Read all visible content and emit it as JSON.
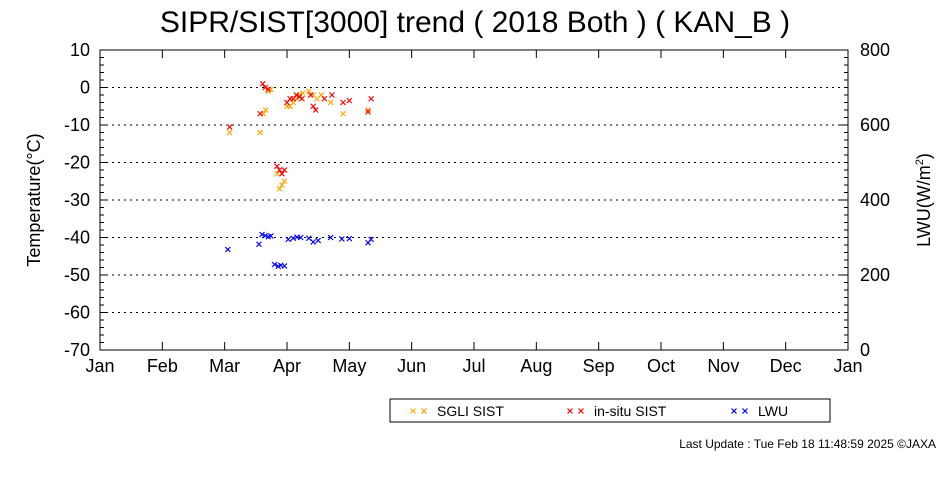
{
  "chart_data": {
    "type": "scatter",
    "title": "SIPR/SIST[3000] trend ( 2018 Both ) ( KAN_B )",
    "ylabel": "Temperature(°C)",
    "ylabel2_main": "LWU(W/m",
    "ylabel2_sup": "2",
    "ylabel2_end": ")",
    "ylim": [
      -70,
      10
    ],
    "y_ticks": [
      10,
      0,
      -10,
      -20,
      -30,
      -40,
      -50,
      -60,
      -70
    ],
    "y2lim": [
      0,
      800
    ],
    "y2_ticks": [
      800,
      600,
      400,
      200,
      0
    ],
    "xlim": [
      1,
      13
    ],
    "x_tick_labels": [
      "Jan",
      "Feb",
      "Mar",
      "Apr",
      "May",
      "Jun",
      "Jul",
      "Aug",
      "Sep",
      "Oct",
      "Nov",
      "Dec",
      "Jan"
    ],
    "grid": "dotted-horizontal",
    "legend_placement": "bottom",
    "series": [
      {
        "name": "SGLI SIST",
        "axis": "left",
        "color": "#ffa500",
        "marker": "x",
        "points": [
          [
            3.08,
            -12
          ],
          [
            3.57,
            -12
          ],
          [
            3.62,
            -7
          ],
          [
            3.66,
            -6
          ],
          [
            3.7,
            -1
          ],
          [
            3.74,
            -0.5
          ],
          [
            3.84,
            -23
          ],
          [
            3.88,
            -27
          ],
          [
            3.92,
            -26
          ],
          [
            3.96,
            -25
          ],
          [
            4.0,
            -5
          ],
          [
            4.05,
            -5
          ],
          [
            4.1,
            -4
          ],
          [
            4.15,
            -3
          ],
          [
            4.2,
            -2
          ],
          [
            4.25,
            -1.5
          ],
          [
            4.35,
            -1
          ],
          [
            4.42,
            -2
          ],
          [
            4.48,
            -3
          ],
          [
            4.55,
            -2
          ],
          [
            4.7,
            -4
          ],
          [
            4.9,
            -7
          ],
          [
            5.3,
            -6
          ]
        ]
      },
      {
        "name": "in-situ SIST",
        "axis": "left",
        "color": "#ff0000",
        "marker": "x",
        "points": [
          [
            3.08,
            -10.5
          ],
          [
            3.57,
            -7
          ],
          [
            3.61,
            1
          ],
          [
            3.65,
            0
          ],
          [
            3.7,
            -0.5
          ],
          [
            3.84,
            -21
          ],
          [
            3.88,
            -22
          ],
          [
            3.92,
            -23
          ],
          [
            3.96,
            -22
          ],
          [
            4.0,
            -4
          ],
          [
            4.05,
            -3
          ],
          [
            4.1,
            -3
          ],
          [
            4.15,
            -2
          ],
          [
            4.2,
            -2.5
          ],
          [
            4.24,
            -3
          ],
          [
            4.38,
            -2
          ],
          [
            4.42,
            -5
          ],
          [
            4.46,
            -6
          ],
          [
            4.6,
            -3
          ],
          [
            4.72,
            -2
          ],
          [
            4.9,
            -4
          ],
          [
            5.0,
            -3.5
          ],
          [
            5.3,
            -6.5
          ],
          [
            5.35,
            -3
          ]
        ]
      },
      {
        "name": "LWU",
        "axis": "right",
        "color": "#0000ff",
        "marker": "x",
        "points": [
          [
            3.05,
            268
          ],
          [
            3.55,
            282
          ],
          [
            3.6,
            308
          ],
          [
            3.65,
            305
          ],
          [
            3.7,
            302
          ],
          [
            3.74,
            304
          ],
          [
            3.8,
            228
          ],
          [
            3.86,
            223
          ],
          [
            3.9,
            226
          ],
          [
            3.96,
            224
          ],
          [
            4.02,
            295
          ],
          [
            4.1,
            298
          ],
          [
            4.16,
            301
          ],
          [
            4.22,
            300
          ],
          [
            4.35,
            298
          ],
          [
            4.42,
            288
          ],
          [
            4.5,
            292
          ],
          [
            4.7,
            300
          ],
          [
            4.88,
            296
          ],
          [
            5.0,
            297
          ],
          [
            5.3,
            286
          ],
          [
            5.35,
            295
          ]
        ]
      }
    ]
  },
  "footer": {
    "last_update": "Last Update : Tue Feb 18 11:48:59 2025  ©JAXA"
  }
}
